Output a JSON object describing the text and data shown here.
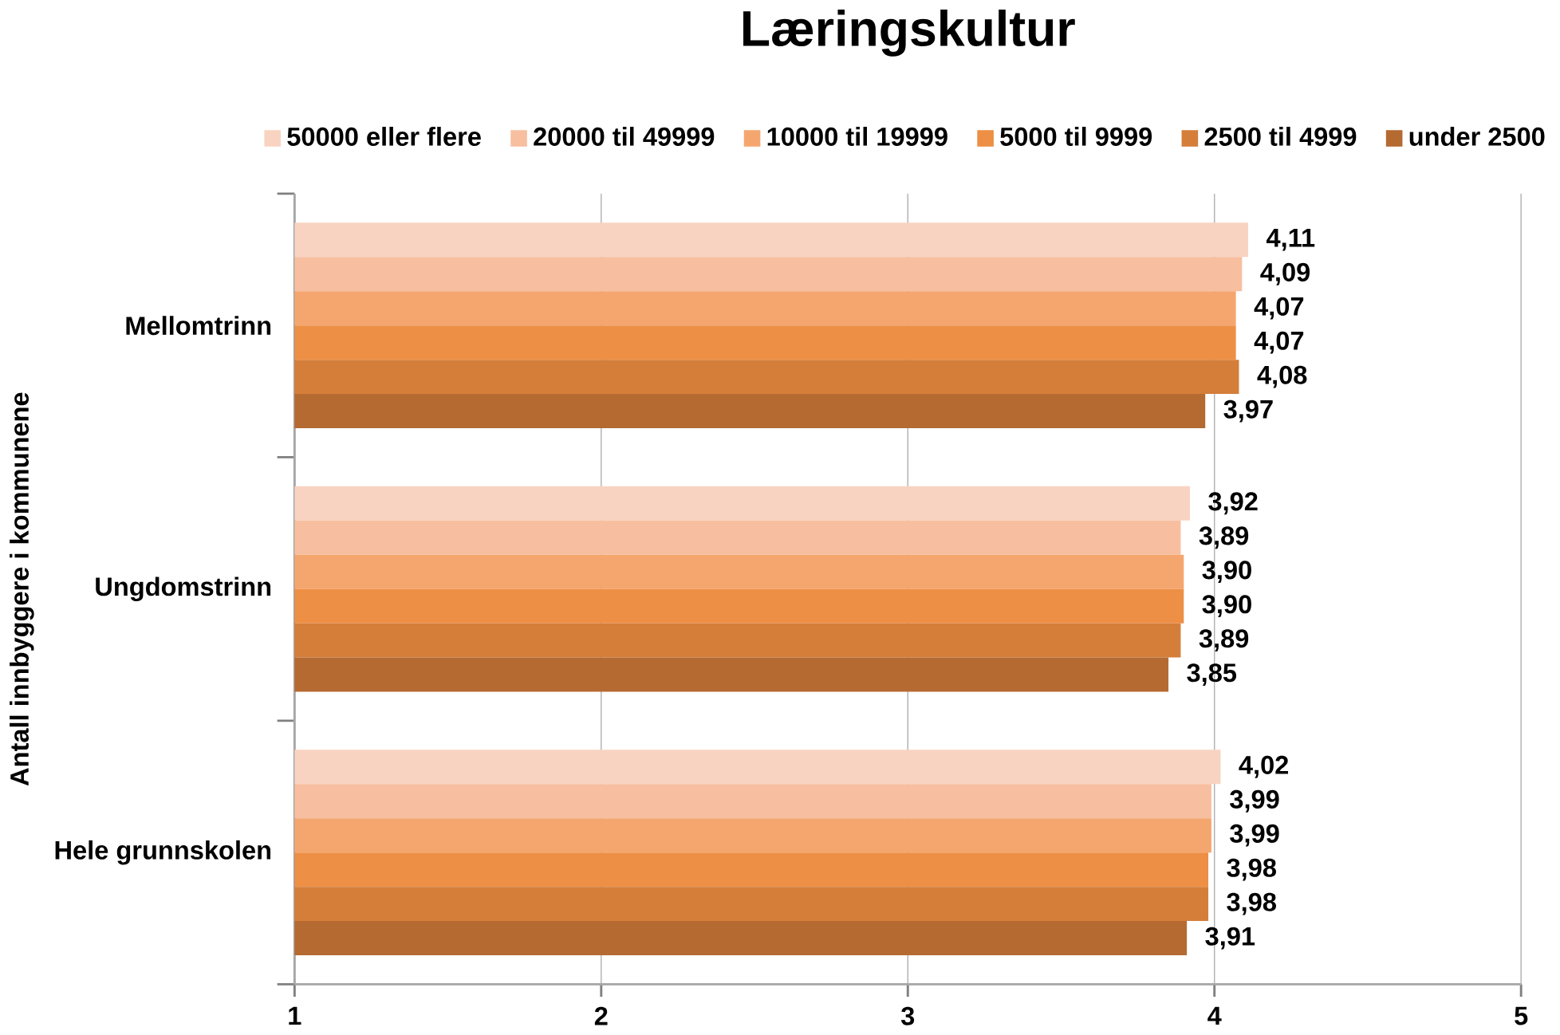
{
  "chart_data": {
    "type": "bar",
    "orientation": "horizontal",
    "title": "Læringskultur",
    "ylabel": "Antall innbyggere i kommunene",
    "categories": [
      "Mellomtrinn",
      "Ungdomstrinn",
      "Hele grunnskolen"
    ],
    "series": [
      {
        "name": "50000 eller flere",
        "color": "#f9d3c1",
        "values": [
          4.11,
          3.92,
          4.02
        ],
        "value_labels": [
          "4,11",
          "3,92",
          "4,02"
        ]
      },
      {
        "name": "20000 til 49999",
        "color": "#f7bfa0",
        "values": [
          4.09,
          3.89,
          3.99
        ],
        "value_labels": [
          "4,09",
          "3,89",
          "3,99"
        ]
      },
      {
        "name": "10000 til 19999",
        "color": "#f5a66f",
        "values": [
          4.07,
          3.9,
          3.99
        ],
        "value_labels": [
          "4,07",
          "3,90",
          "3,99"
        ]
      },
      {
        "name": "5000 til 9999",
        "color": "#ed8f45",
        "values": [
          4.07,
          3.9,
          3.98
        ],
        "value_labels": [
          "4,07",
          "3,90",
          "3,98"
        ]
      },
      {
        "name": "2500 til 4999",
        "color": "#d47e3a",
        "values": [
          4.08,
          3.89,
          3.98
        ],
        "value_labels": [
          "4,08",
          "3,89",
          "3,98"
        ]
      },
      {
        "name": "under 2500",
        "color": "#b56a32",
        "values": [
          3.97,
          3.85,
          3.91
        ],
        "value_labels": [
          "3,97",
          "3,85",
          "3,91"
        ]
      }
    ],
    "xlim": [
      1,
      5
    ],
    "xticks": [
      1,
      2,
      3,
      4,
      5
    ],
    "grid": "x",
    "legend": "top"
  }
}
